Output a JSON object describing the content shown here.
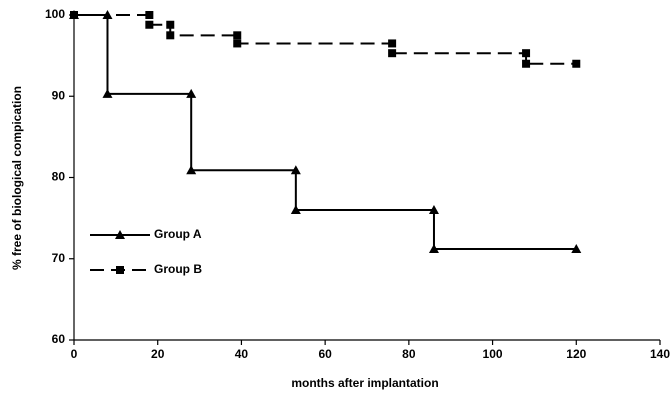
{
  "chart_data": {
    "type": "line",
    "x_label": "months after implantation",
    "y_label": "% free of biological compication",
    "xlim": [
      0,
      140
    ],
    "xticks": [
      0,
      20,
      40,
      60,
      80,
      100,
      120,
      140
    ],
    "ylim": [
      60,
      100
    ],
    "yticks": [
      60,
      70,
      80,
      90,
      100
    ],
    "grid": false,
    "legend": "left",
    "series": [
      {
        "name": "Group A",
        "color": "#000000",
        "marker": "triangle",
        "dash": false,
        "x": [
          0,
          8,
          8,
          28,
          28,
          53,
          53,
          86,
          86,
          120
        ],
        "values": [
          100,
          100,
          90.3,
          90.3,
          80.9,
          80.9,
          76,
          76,
          71.2,
          71.2
        ]
      },
      {
        "name": "Group B",
        "color": "#000000",
        "marker": "square",
        "dash": true,
        "x": [
          0,
          18,
          18,
          23,
          23,
          39,
          39,
          76,
          76,
          108,
          108,
          120
        ],
        "values": [
          100,
          100,
          98.8,
          98.8,
          97.5,
          97.5,
          96.5,
          96.5,
          95.3,
          95.3,
          94,
          94
        ]
      }
    ]
  }
}
